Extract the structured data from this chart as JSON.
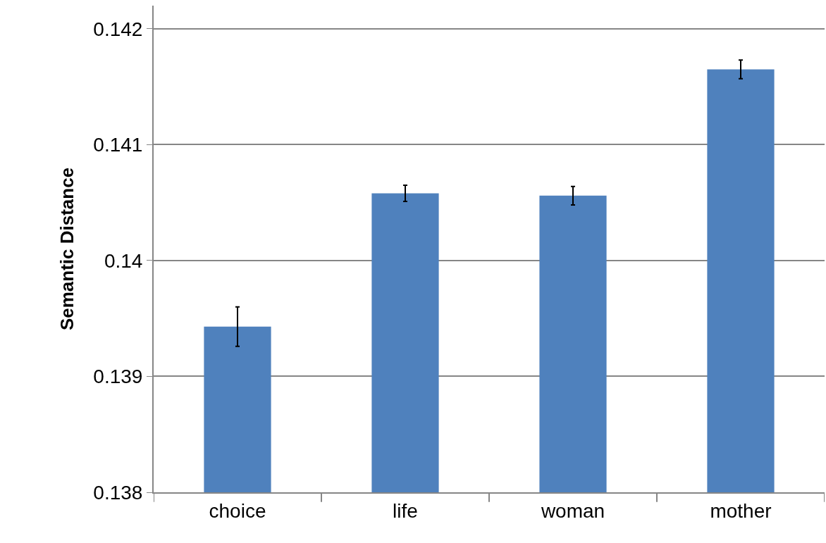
{
  "chart_data": {
    "type": "bar",
    "ylabel": "Semantic Distance",
    "categories": [
      "choice",
      "life",
      "woman",
      "mother"
    ],
    "values": [
      0.13943,
      0.14058,
      0.14056,
      0.14165
    ],
    "errors": [
      0.00017,
      7e-05,
      8e-05,
      8e-05
    ],
    "color": "#4f81bd",
    "ylim": [
      0.138,
      0.1422
    ],
    "yticks": [
      0.138,
      0.139,
      0.14,
      0.141,
      0.142
    ],
    "grid": "y"
  }
}
